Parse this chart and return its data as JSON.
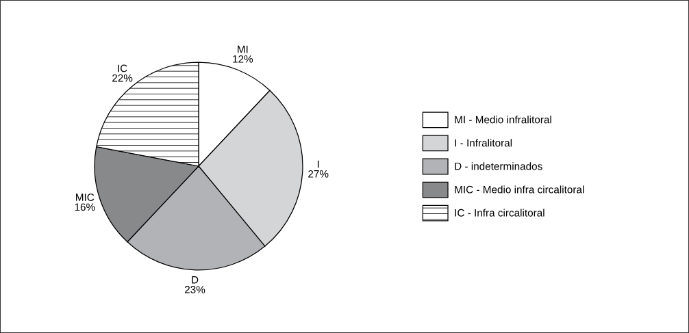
{
  "chart_data": {
    "type": "pie",
    "categories": [
      "MI - Medio infralitoral",
      "I - Infralitoral",
      "D - indeterminados",
      "MIC - Medio infra circalitoral",
      "IC - Infra circalitoral"
    ],
    "values": [
      12,
      27,
      23,
      16,
      22
    ],
    "value_labels": [
      "MI\n12%",
      "I\n27%",
      "D\n23%",
      "MIC\n16%",
      "IC\n22%"
    ],
    "colors": [
      "#ffffff",
      "#d4d5d7",
      "#b1b3b6",
      "#88898b",
      "#ffffff"
    ],
    "legend": "right"
  }
}
